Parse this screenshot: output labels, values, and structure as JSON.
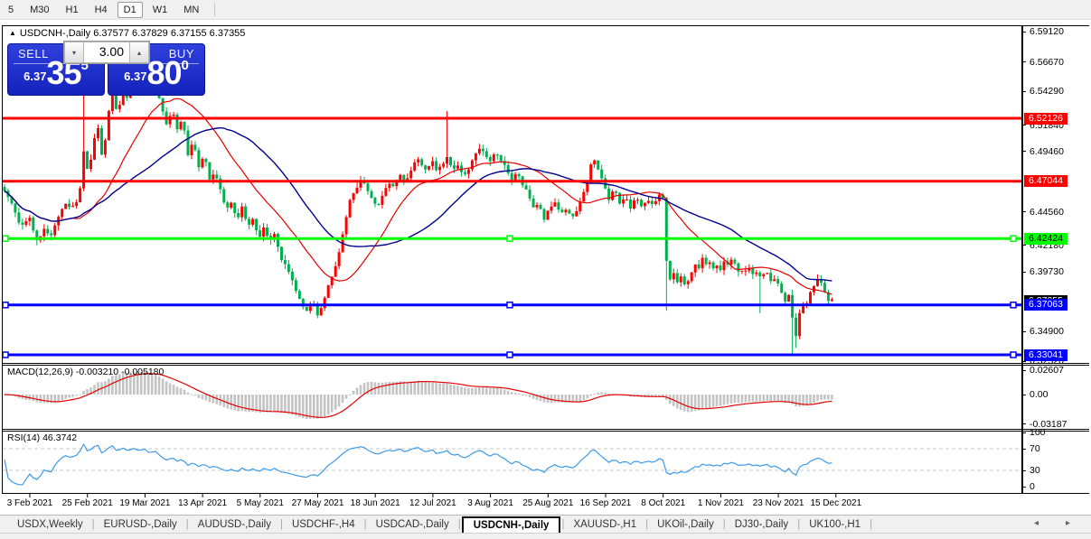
{
  "toolbar": {
    "timeframes": [
      "5",
      "M30",
      "H1",
      "H4",
      "D1",
      "W1",
      "MN"
    ],
    "active_timeframe": "D1"
  },
  "chart": {
    "collapse_arrow": "▲",
    "title": "USDCNH-,Daily 6.37577 6.37829 6.37155 6.37355",
    "quote": {
      "open": "6.37577",
      "high": "6.37829",
      "low": "6.37155",
      "close": "6.37355"
    }
  },
  "trade_panel": {
    "sell_label": "SELL",
    "buy_label": "BUY",
    "volume": "3.00",
    "spin_down": "▾",
    "spin_up": "▴",
    "sell_price": {
      "small": "6.37",
      "big": "35",
      "sup": "5"
    },
    "buy_price": {
      "small": "6.37",
      "big": "80",
      "sup": "0"
    }
  },
  "price_axis": {
    "ticks": [
      "6.59120",
      "6.56670",
      "6.54290",
      "6.49460",
      "6.44560",
      "6.39730",
      "6.34900",
      "6.32520"
    ],
    "hidden_ticks": [
      "6.51840",
      "6.42180"
    ],
    "bid_label": {
      "text": "6.37355",
      "bg": "#000000",
      "fg": "#ffffff"
    }
  },
  "macd_panel": {
    "label": "MACD(12,26,9) -0.003210 -0.005180",
    "ticks": [
      "0.02607",
      "0.00",
      "-0.03187"
    ]
  },
  "rsi_panel": {
    "label": "RSI(14) 46.3742",
    "ticks": [
      "100",
      "70",
      "30",
      "0"
    ],
    "levels": [
      70,
      30
    ]
  },
  "date_axis": {
    "labels": [
      "3 Feb 2021",
      "25 Feb 2021",
      "19 Mar 2021",
      "13 Apr 2021",
      "5 May 2021",
      "27 May 2021",
      "18 Jun 2021",
      "12 Jul 2021",
      "3 Aug 2021",
      "25 Aug 2021",
      "16 Sep 2021",
      "8 Oct 2021",
      "1 Nov 2021",
      "23 Nov 2021",
      "15 Dec 2021"
    ]
  },
  "tabbar": {
    "tabs": [
      "USDX,Weekly",
      "EURUSD-,Daily",
      "AUDUSD-,Daily",
      "USDCHF-,H4",
      "USDCAD-,Daily",
      "USDCNH-,Daily",
      "XAUUSD-,H1",
      "UKOil-,Daily",
      "DJ30-,Daily",
      "UK100-,H1"
    ],
    "active_tab": "USDCNH-,Daily",
    "scroll_left": "◂",
    "scroll_right": "▸"
  },
  "chart_data": {
    "type": "candlestick",
    "symbol": "USDCNH-",
    "timeframe": "Daily",
    "title": "USDCNH-,Daily",
    "ylim": [
      6.3252,
      6.5912
    ],
    "x_tick_labels": [
      "3 Feb 2021",
      "25 Feb 2021",
      "19 Mar 2021",
      "13 Apr 2021",
      "5 May 2021",
      "27 May 2021",
      "18 Jun 2021",
      "12 Jul 2021",
      "3 Aug 2021",
      "25 Aug 2021",
      "16 Sep 2021",
      "8 Oct 2021",
      "1 Nov 2021",
      "23 Nov 2021",
      "15 Dec 2021"
    ],
    "last_quote": {
      "open": 6.37577,
      "high": 6.37829,
      "low": 6.37155,
      "close": 6.37355
    },
    "colors": {
      "bull": "#ff0000",
      "bear": "#00b050",
      "ma_fast": "#e60000",
      "ma_slow": "#000090",
      "macd_hist": "#c4c4c4",
      "macd_signal": "#e60000",
      "rsi": "#3c9be8",
      "hline_red": "#ff0000",
      "hline_green": "#00ff00",
      "hline_blue": "#0000ff"
    },
    "hlines": [
      {
        "value": 6.52126,
        "color": "#ff0000",
        "label_fg": "#ffffff",
        "handles": false
      },
      {
        "value": 6.47044,
        "color": "#ff0000",
        "label_fg": "#ffffff",
        "handles": false
      },
      {
        "value": 6.42424,
        "color": "#00ff00",
        "label_fg": "#000000",
        "handles": true
      },
      {
        "value": 6.37063,
        "color": "#0000ff",
        "label_fg": "#ffffff",
        "handles": true
      },
      {
        "value": 6.33041,
        "color": "#0000ff",
        "label_fg": "#ffffff",
        "handles": true
      }
    ],
    "moving_averages": [
      {
        "period": 20,
        "color": "#e60000"
      },
      {
        "period": 40,
        "color": "#000090"
      }
    ],
    "indicators": {
      "macd": {
        "params": [
          12,
          26,
          9
        ],
        "main": -0.00321,
        "signal": -0.00518,
        "range": [
          -0.03187,
          0.02607
        ]
      },
      "rsi": {
        "period": 14,
        "value": 46.3742,
        "range": [
          0,
          100
        ],
        "levels": [
          30,
          70
        ]
      }
    },
    "close_anchors": [
      [
        5,
        6.462
      ],
      [
        14,
        6.452
      ],
      [
        24,
        6.433
      ],
      [
        33,
        6.441
      ],
      [
        40,
        6.423
      ],
      [
        48,
        6.431
      ],
      [
        56,
        6.425
      ],
      [
        62,
        6.438
      ],
      [
        70,
        6.452
      ],
      [
        78,
        6.448
      ],
      [
        86,
        6.455
      ],
      [
        92,
        6.48
      ],
      [
        94,
        6.538
      ],
      [
        97,
        6.468
      ],
      [
        103,
        6.5
      ],
      [
        108,
        6.516
      ],
      [
        113,
        6.49
      ],
      [
        118,
        6.512
      ],
      [
        124,
        6.545
      ],
      [
        130,
        6.522
      ],
      [
        136,
        6.548
      ],
      [
        142,
        6.536
      ],
      [
        148,
        6.552
      ],
      [
        154,
        6.544
      ],
      [
        160,
        6.556
      ],
      [
        166,
        6.541
      ],
      [
        172,
        6.548
      ],
      [
        178,
        6.532
      ],
      [
        184,
        6.517
      ],
      [
        190,
        6.528
      ],
      [
        196,
        6.511
      ],
      [
        202,
        6.521
      ],
      [
        208,
        6.492
      ],
      [
        214,
        6.506
      ],
      [
        220,
        6.48
      ],
      [
        226,
        6.492
      ],
      [
        232,
        6.472
      ],
      [
        238,
        6.48
      ],
      [
        244,
        6.462
      ],
      [
        250,
        6.447
      ],
      [
        256,
        6.454
      ],
      [
        262,
        6.441
      ],
      [
        268,
        6.449
      ],
      [
        274,
        6.433
      ],
      [
        280,
        6.441
      ],
      [
        286,
        6.426
      ],
      [
        292,
        6.432
      ],
      [
        298,
        6.421
      ],
      [
        304,
        6.429
      ],
      [
        310,
        6.411
      ],
      [
        316,
        6.401
      ],
      [
        322,
        6.393
      ],
      [
        328,
        6.381
      ],
      [
        334,
        6.373
      ],
      [
        340,
        6.363
      ],
      [
        346,
        6.373
      ],
      [
        352,
        6.361
      ],
      [
        358,
        6.376
      ],
      [
        364,
        6.386
      ],
      [
        370,
        6.398
      ],
      [
        376,
        6.416
      ],
      [
        382,
        6.44
      ],
      [
        388,
        6.456
      ],
      [
        394,
        6.463
      ],
      [
        400,
        6.473
      ],
      [
        406,
        6.466
      ],
      [
        412,
        6.453
      ],
      [
        418,
        6.449
      ],
      [
        424,
        6.461
      ],
      [
        430,
        6.471
      ],
      [
        436,
        6.463
      ],
      [
        442,
        6.476
      ],
      [
        448,
        6.469
      ],
      [
        454,
        6.479
      ],
      [
        460,
        6.49
      ],
      [
        466,
        6.483
      ],
      [
        472,
        6.479
      ],
      [
        478,
        6.489
      ],
      [
        484,
        6.479
      ],
      [
        490,
        6.483
      ],
      [
        496,
        6.492
      ],
      [
        500,
        6.479
      ],
      [
        506,
        6.486
      ],
      [
        512,
        6.473
      ],
      [
        518,
        6.479
      ],
      [
        524,
        6.491
      ],
      [
        530,
        6.499
      ],
      [
        536,
        6.491
      ],
      [
        542,
        6.486
      ],
      [
        548,
        6.495
      ],
      [
        554,
        6.489
      ],
      [
        560,
        6.479
      ],
      [
        566,
        6.471
      ],
      [
        572,
        6.479
      ],
      [
        578,
        6.469
      ],
      [
        584,
        6.459
      ],
      [
        590,
        6.449
      ],
      [
        596,
        6.453
      ],
      [
        602,
        6.441
      ],
      [
        608,
        6.447
      ],
      [
        614,
        6.453
      ],
      [
        620,
        6.445
      ],
      [
        626,
        6.449
      ],
      [
        632,
        6.439
      ],
      [
        638,
        6.446
      ],
      [
        644,
        6.459
      ],
      [
        650,
        6.471
      ],
      [
        656,
        6.489
      ],
      [
        662,
        6.479
      ],
      [
        668,
        6.469
      ],
      [
        674,
        6.456
      ],
      [
        680,
        6.463
      ],
      [
        686,
        6.451
      ],
      [
        692,
        6.459
      ],
      [
        698,
        6.449
      ],
      [
        704,
        6.456
      ],
      [
        710,
        6.449
      ],
      [
        716,
        6.456
      ],
      [
        722,
        6.453
      ],
      [
        728,
        6.459
      ],
      [
        734,
        6.456
      ],
      [
        738,
        6.396
      ],
      [
        742,
        6.391
      ],
      [
        746,
        6.399
      ],
      [
        750,
        6.389
      ],
      [
        754,
        6.393
      ],
      [
        758,
        6.385
      ],
      [
        762,
        6.391
      ],
      [
        766,
        6.399
      ],
      [
        770,
        6.406
      ],
      [
        774,
        6.401
      ],
      [
        778,
        6.409
      ],
      [
        782,
        6.401
      ],
      [
        786,
        6.406
      ],
      [
        790,
        6.399
      ],
      [
        794,
        6.405
      ],
      [
        798,
        6.399
      ],
      [
        802,
        6.406
      ],
      [
        806,
        6.401
      ],
      [
        810,
        6.409
      ],
      [
        814,
        6.403
      ],
      [
        818,
        6.397
      ],
      [
        822,
        6.401
      ],
      [
        826,
        6.395
      ],
      [
        830,
        6.401
      ],
      [
        834,
        6.393
      ],
      [
        838,
        6.399
      ],
      [
        842,
        6.393
      ],
      [
        846,
        6.399
      ],
      [
        850,
        6.393
      ],
      [
        854,
        6.387
      ],
      [
        858,
        6.393
      ],
      [
        862,
        6.386
      ],
      [
        866,
        6.379
      ],
      [
        870,
        6.373
      ],
      [
        874,
        6.379
      ],
      [
        878,
        6.349
      ],
      [
        882,
        6.343
      ],
      [
        886,
        6.376
      ],
      [
        890,
        6.369
      ],
      [
        894,
        6.376
      ],
      [
        898,
        6.381
      ],
      [
        902,
        6.387
      ],
      [
        906,
        6.393
      ],
      [
        910,
        6.386
      ],
      [
        914,
        6.379
      ],
      [
        918,
        6.373
      ],
      [
        922,
        6.3736
      ]
    ],
    "wick_spikes": [
      {
        "x": 94,
        "high": 6.57
      },
      {
        "x": 124,
        "high": 6.555
      },
      {
        "x": 160,
        "high": 6.563
      },
      {
        "x": 496,
        "high": 6.527
      },
      {
        "x": 738,
        "low": 6.366
      },
      {
        "x": 840,
        "low": 6.364
      },
      {
        "x": 878,
        "low": 6.331
      },
      {
        "x": 882,
        "low": 6.336
      }
    ]
  }
}
